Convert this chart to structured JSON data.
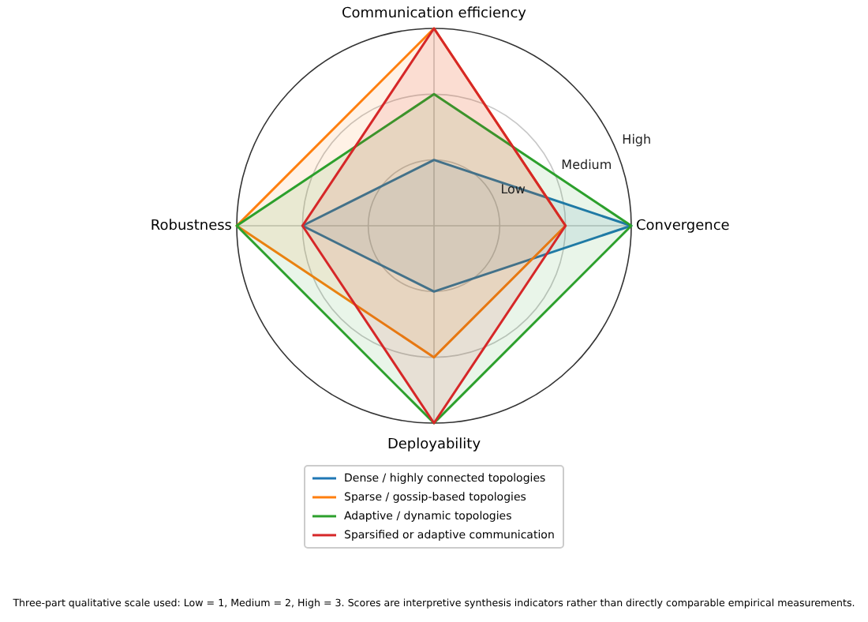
{
  "chart_data": {
    "type": "radar",
    "categories": [
      "Communication efficiency",
      "Convergence",
      "Deployability",
      "Robustness"
    ],
    "series": [
      {
        "name": "Dense / highly connected topologies",
        "color": "#1f77b4",
        "values": [
          1,
          3,
          1,
          2
        ]
      },
      {
        "name": "Sparse / gossip-based topologies",
        "color": "#ff7f0e",
        "values": [
          3,
          2,
          2,
          3
        ]
      },
      {
        "name": "Adaptive / dynamic topologies",
        "color": "#2ca02c",
        "values": [
          2,
          3,
          3,
          3
        ]
      },
      {
        "name": "Sparsified or adaptive communication",
        "color": "#d62728",
        "values": [
          3,
          2,
          3,
          2
        ]
      }
    ],
    "ylim": [
      0,
      3
    ],
    "yticks": [
      {
        "value": 1,
        "label": "Low"
      },
      {
        "value": 2,
        "label": "Medium"
      },
      {
        "value": 3,
        "label": "High"
      }
    ],
    "grid": true,
    "legend": "bottom",
    "annotations": [
      "Three-part qualitative scale used: Low = 1, Medium = 2, High = 3. Scores are interpretive synthesis indicators rather than directly comparable empirical measurements."
    ]
  }
}
